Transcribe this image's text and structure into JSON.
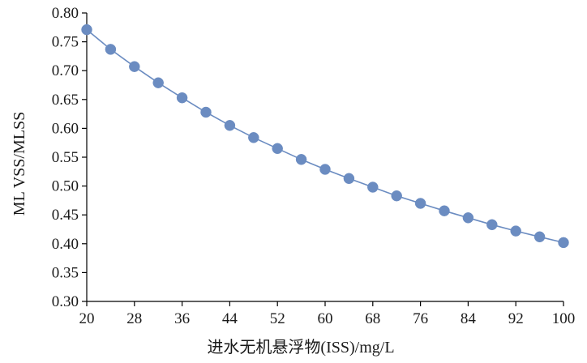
{
  "chart_data": {
    "type": "line",
    "xlabel": "进水无机悬浮物(ISS)/mg/L",
    "ylabel": "ML VSS/MLSS",
    "xlim": [
      20,
      100
    ],
    "ylim": [
      0.3,
      0.8
    ],
    "x_ticks": [
      "20",
      "28",
      "36",
      "44",
      "52",
      "60",
      "68",
      "76",
      "84",
      "92",
      "100"
    ],
    "y_ticks": [
      "0.30",
      "0.35",
      "0.40",
      "0.45",
      "0.50",
      "0.55",
      "0.60",
      "0.65",
      "0.70",
      "0.75",
      "0.80"
    ],
    "grid": false,
    "legend": "none",
    "color": "#6b8cc1",
    "series": [
      {
        "x": [
          20,
          24,
          28,
          32,
          36,
          40,
          44,
          48,
          52,
          56,
          60,
          64,
          68,
          72,
          76,
          80,
          84,
          88,
          92,
          96,
          100
        ],
        "y": [
          0.771,
          0.737,
          0.707,
          0.679,
          0.653,
          0.628,
          0.605,
          0.584,
          0.565,
          0.546,
          0.529,
          0.513,
          0.498,
          0.483,
          0.47,
          0.457,
          0.445,
          0.433,
          0.422,
          0.412,
          0.402
        ]
      }
    ]
  }
}
